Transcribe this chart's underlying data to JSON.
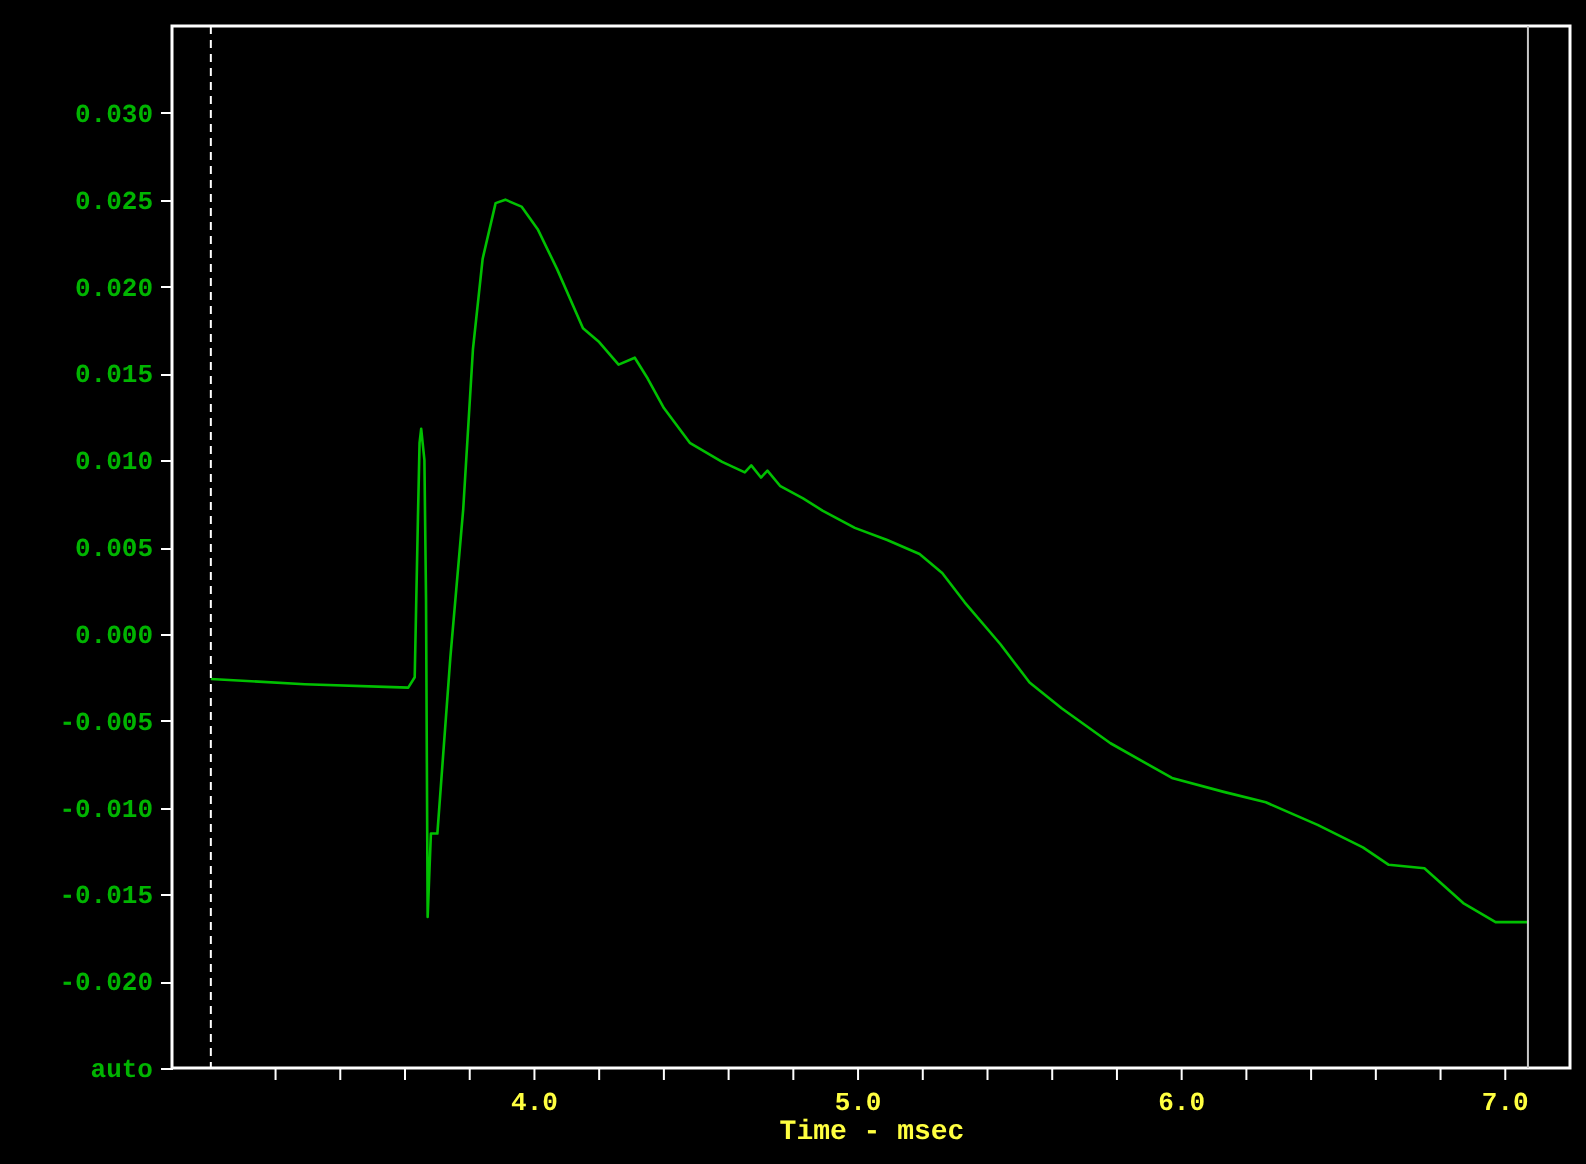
{
  "chart_data": {
    "type": "line",
    "xlabel": "Time - msec",
    "xlim": [
      2.88,
      7.2
    ],
    "xticks": [
      {
        "value": 3.2,
        "label": null
      },
      {
        "value": 3.4,
        "label": null
      },
      {
        "value": 3.6,
        "label": null
      },
      {
        "value": 3.8,
        "label": null
      },
      {
        "value": 4.0,
        "label": "4.0"
      },
      {
        "value": 4.2,
        "label": null
      },
      {
        "value": 4.4,
        "label": null
      },
      {
        "value": 4.6,
        "label": null
      },
      {
        "value": 4.8,
        "label": null
      },
      {
        "value": 5.0,
        "label": "5.0"
      },
      {
        "value": 5.2,
        "label": null
      },
      {
        "value": 5.4,
        "label": null
      },
      {
        "value": 5.6,
        "label": null
      },
      {
        "value": 5.8,
        "label": null
      },
      {
        "value": 6.0,
        "label": "6.0"
      },
      {
        "value": 6.2,
        "label": null
      },
      {
        "value": 6.4,
        "label": null
      },
      {
        "value": 6.6,
        "label": null
      },
      {
        "value": 6.8,
        "label": null
      },
      {
        "value": 7.0,
        "label": "7.0"
      }
    ],
    "ylim": [
      -0.025,
      0.035
    ],
    "yticks": [
      {
        "value": 0.03,
        "label": "0.030"
      },
      {
        "value": 0.025,
        "label": "0.025"
      },
      {
        "value": 0.02,
        "label": "0.020"
      },
      {
        "value": 0.015,
        "label": "0.015"
      },
      {
        "value": 0.01,
        "label": "0.010"
      },
      {
        "value": 0.005,
        "label": "0.005"
      },
      {
        "value": 0,
        "label": "0.000"
      },
      {
        "value": -0.005,
        "label": "-0.005"
      },
      {
        "value": -0.01,
        "label": "-0.010"
      },
      {
        "value": -0.015,
        "label": "-0.015"
      },
      {
        "value": -0.02,
        "label": "-0.020"
      },
      {
        "value": -0.025,
        "label": "auto"
      }
    ],
    "grid": false,
    "marker": "none",
    "line_style": "solid",
    "ref_lines": [
      {
        "axis": "x",
        "value": 3.0,
        "color": "#ffffff",
        "line_style": "dashed"
      },
      {
        "axis": "x",
        "value": 7.07,
        "color": "#c8c8c8",
        "line_style": "solid"
      }
    ],
    "x": [
      3.0,
      3.29,
      3.61,
      3.63,
      3.64,
      3.645,
      3.65,
      3.66,
      3.665,
      3.67,
      3.68,
      3.7,
      3.74,
      3.78,
      3.81,
      3.84,
      3.88,
      3.91,
      3.96,
      4.01,
      4.07,
      4.15,
      4.2,
      4.26,
      4.31,
      4.35,
      4.4,
      4.48,
      4.58,
      4.65,
      4.67,
      4.7,
      4.72,
      4.76,
      4.83,
      4.89,
      4.99,
      5.09,
      5.19,
      5.26,
      5.33,
      5.44,
      5.53,
      5.63,
      5.78,
      5.97,
      6.13,
      6.26,
      6.42,
      6.56,
      6.64,
      6.75,
      6.87,
      6.97,
      7.07
    ],
    "series": [
      {
        "color": "#00c000",
        "values": [
          -0.0026,
          -0.0029,
          -0.0031,
          -0.0025,
          0.0067,
          0.011,
          0.0118,
          0.01,
          0.002,
          -0.0163,
          -0.0115,
          -0.0115,
          -0.0014,
          0.0072,
          0.0164,
          0.0216,
          0.0248,
          0.025,
          0.0246,
          0.0233,
          0.021,
          0.0176,
          0.0168,
          0.0155,
          0.0159,
          0.0147,
          0.013,
          0.011,
          0.0099,
          0.0093,
          0.0097,
          0.009,
          0.0094,
          0.0085,
          0.0078,
          0.0071,
          0.0061,
          0.0054,
          0.0046,
          0.0035,
          0.0018,
          -0.0006,
          -0.0028,
          -0.0043,
          -0.0063,
          -0.0083,
          -0.0091,
          -0.0097,
          -0.011,
          -0.0123,
          -0.0133,
          -0.0135,
          -0.0155,
          -0.0166,
          -0.0166
        ]
      }
    ]
  }
}
